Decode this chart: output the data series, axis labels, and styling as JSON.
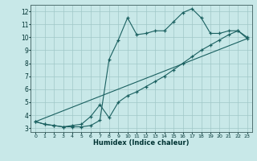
{
  "xlabel": "Humidex (Indice chaleur)",
  "bg_color": "#c8e8e8",
  "grid_color": "#a0c8c8",
  "line_color": "#1a6060",
  "xlim": [
    -0.5,
    23.5
  ],
  "ylim": [
    2.7,
    12.5
  ],
  "yticks": [
    3,
    4,
    5,
    6,
    7,
    8,
    9,
    10,
    11,
    12
  ],
  "xticks": [
    0,
    1,
    2,
    3,
    4,
    5,
    6,
    7,
    8,
    9,
    10,
    11,
    12,
    13,
    14,
    15,
    16,
    17,
    18,
    19,
    20,
    21,
    22,
    23
  ],
  "line1_x": [
    0,
    1,
    2,
    3,
    4,
    5,
    6,
    7,
    8,
    9,
    10,
    11,
    12,
    13,
    14,
    15,
    16,
    17,
    18,
    19,
    20,
    21,
    22,
    23
  ],
  "line1_y": [
    3.5,
    3.3,
    3.2,
    3.1,
    3.2,
    3.3,
    3.9,
    4.8,
    3.8,
    5.0,
    5.5,
    5.8,
    6.2,
    6.6,
    7.0,
    7.5,
    8.0,
    8.5,
    9.0,
    9.4,
    9.8,
    10.2,
    10.5,
    9.9
  ],
  "line2_x": [
    0,
    1,
    2,
    3,
    4,
    5,
    6,
    7,
    8,
    9,
    10,
    11,
    12,
    13,
    14,
    15,
    16,
    17,
    18,
    19,
    20,
    21,
    22,
    23
  ],
  "line2_y": [
    3.5,
    3.3,
    3.2,
    3.1,
    3.1,
    3.1,
    3.2,
    3.6,
    8.3,
    9.8,
    11.5,
    10.2,
    10.3,
    10.5,
    10.5,
    11.2,
    11.9,
    12.2,
    11.5,
    10.3,
    10.3,
    10.5,
    10.5,
    10.0
  ],
  "line3_x": [
    0,
    23
  ],
  "line3_y": [
    3.5,
    9.9
  ]
}
